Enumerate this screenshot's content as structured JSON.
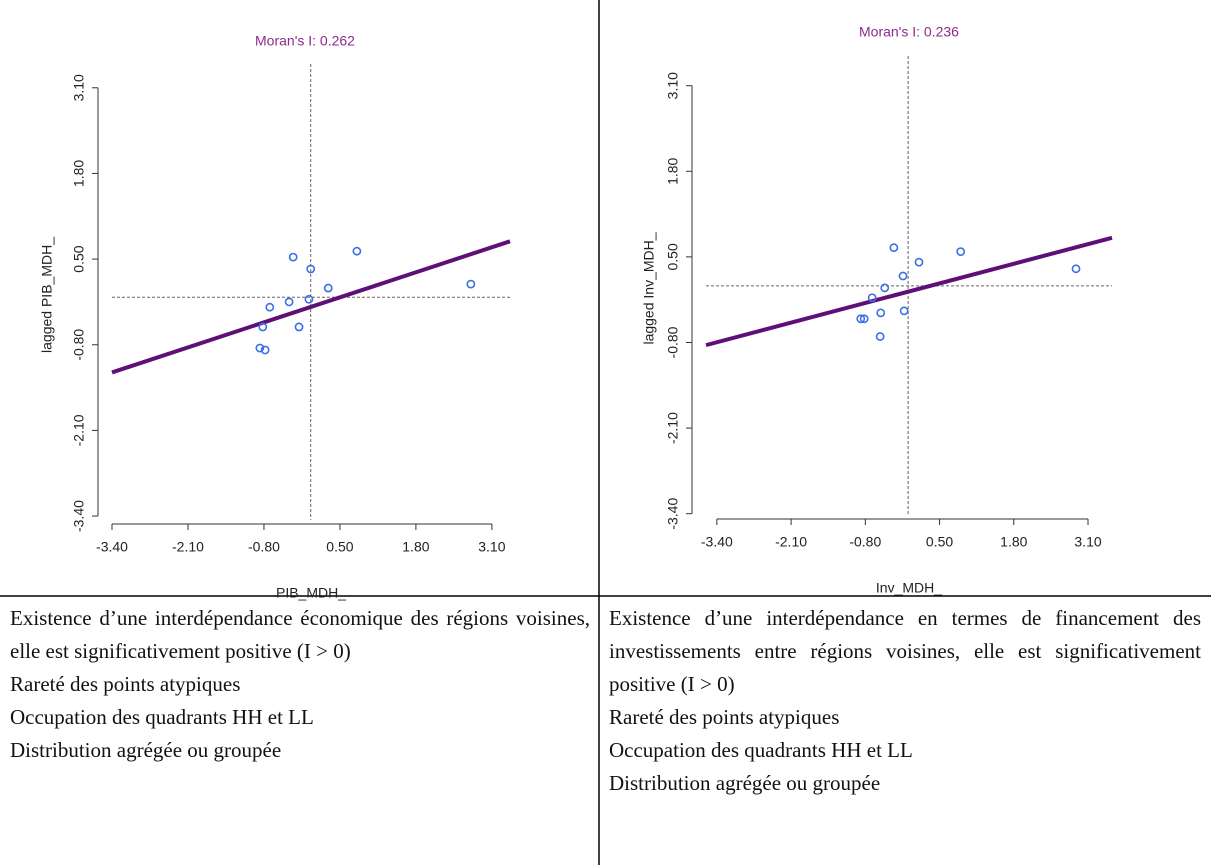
{
  "chart_data": [
    {
      "type": "scatter",
      "title": "Moran's I: 0.262",
      "title_color": "#8e2a8e",
      "xlabel": "PIB_MDH_",
      "ylabel": "lagged PIB_MDH_",
      "color": "#3b6fe6",
      "x": [
        -0.3,
        0.0,
        0.79,
        0.3,
        2.74,
        -0.37,
        -0.7,
        -0.03,
        -0.82,
        -0.2,
        -0.87,
        -0.78
      ],
      "values": [
        0.53,
        0.35,
        0.62,
        0.06,
        0.12,
        -0.15,
        -0.23,
        -0.11,
        -0.53,
        -0.53,
        -0.85,
        -0.88
      ],
      "xlim": [
        -3.4,
        3.41
      ],
      "ylim": [
        -3.46,
        3.37
      ],
      "xticks": [
        {
          "value": -3.4,
          "label": "-3.40"
        },
        {
          "value": -2.1,
          "label": "-2.10"
        },
        {
          "value": -0.8,
          "label": "-0.80"
        },
        {
          "value": 0.5,
          "label": "0.50"
        },
        {
          "value": 1.8,
          "label": "1.80"
        },
        {
          "value": 3.1,
          "label": "3.10"
        }
      ],
      "yticks": [
        {
          "value": -3.4,
          "label": "-3.40"
        },
        {
          "value": -2.1,
          "label": "-2.10"
        },
        {
          "value": -0.8,
          "label": "-0.80"
        },
        {
          "value": 0.5,
          "label": "0.50"
        },
        {
          "value": 1.8,
          "label": "1.80"
        },
        {
          "value": 3.1,
          "label": "3.10"
        }
      ],
      "fit_line": {
        "color": "#5e0f78",
        "x": [
          -3.4,
          3.41
        ],
        "y": [
          -1.22,
          0.77
        ]
      },
      "reference_lines": {
        "x": 0,
        "y": -0.08
      }
    },
    {
      "type": "scatter",
      "title": "Moran's I: 0.236",
      "title_color": "#8e2a8e",
      "xlabel": "Inv_MDH_",
      "ylabel": "lagged Inv_MDH_",
      "color": "#3b6fe6",
      "x": [
        -0.3,
        0.14,
        0.87,
        2.89,
        -0.14,
        -0.46,
        -0.68,
        -0.12,
        -0.53,
        -0.88,
        -0.82,
        -0.54
      ],
      "values": [
        0.64,
        0.42,
        0.58,
        0.32,
        0.21,
        0.03,
        -0.12,
        -0.32,
        -0.35,
        -0.44,
        -0.44,
        -0.71
      ],
      "xlim": [
        -3.59,
        3.52
      ],
      "ylim": [
        -3.42,
        3.46
      ],
      "xticks": [
        {
          "value": -3.4,
          "label": "-3.40"
        },
        {
          "value": -2.1,
          "label": "-2.10"
        },
        {
          "value": -0.8,
          "label": "-0.80"
        },
        {
          "value": 0.5,
          "label": "0.50"
        },
        {
          "value": 1.8,
          "label": "1.80"
        },
        {
          "value": 3.1,
          "label": "3.10"
        }
      ],
      "yticks": [
        {
          "value": -3.4,
          "label": "-3.40"
        },
        {
          "value": -2.1,
          "label": "-2.10"
        },
        {
          "value": -0.8,
          "label": "-0.80"
        },
        {
          "value": 0.5,
          "label": "0.50"
        },
        {
          "value": 1.8,
          "label": "1.80"
        },
        {
          "value": 3.1,
          "label": "3.10"
        }
      ],
      "fit_line": {
        "color": "#5e0f78",
        "x": [
          -3.59,
          3.52
        ],
        "y": [
          -0.84,
          0.79
        ]
      },
      "reference_lines": {
        "x": -0.05,
        "y": 0.06
      }
    }
  ],
  "table": {
    "cells": [
      [
        "Existence d’une interdépendance économique des régions voisines, elle est significativement positive (I > 0)",
        "Rareté des points atypiques",
        "Occupation des quadrants HH et LL",
        "Distribution agrégée ou groupée"
      ],
      [
        "Existence d’une interdépendance en termes de financement des investissements entre régions voisines, elle est significativement positive (I > 0)",
        "Rareté des points atypiques",
        "Occupation des quadrants HH et LL",
        "Distribution agrégée ou groupée"
      ]
    ]
  }
}
